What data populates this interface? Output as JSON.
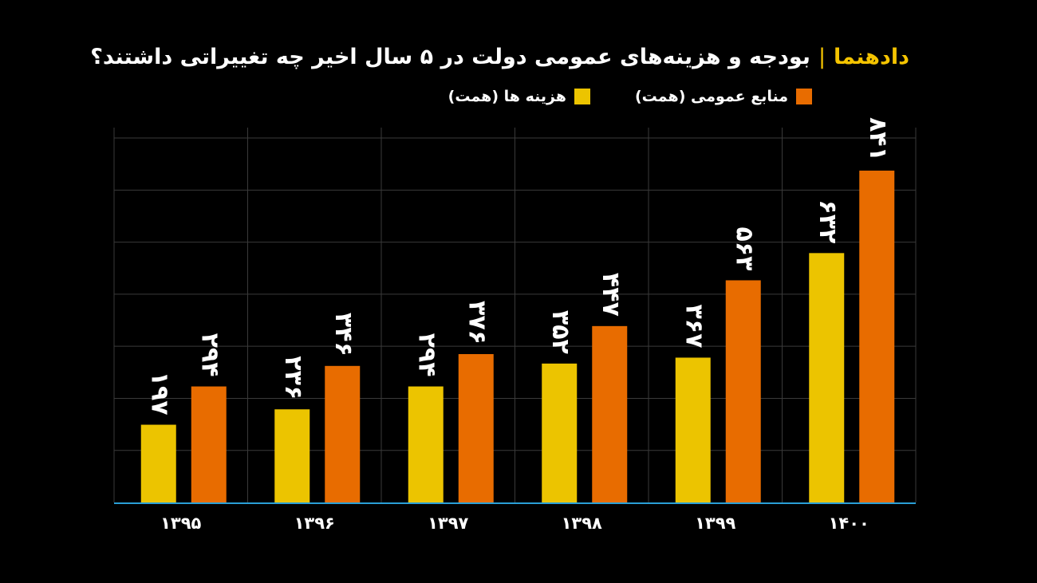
{
  "header": {
    "brand": "دادهنما",
    "separator": "|",
    "title": "بودجه و هزینه‌های عمومی دولت در ۵ سال اخیر  چه تغییراتی داشتند؟"
  },
  "colors": {
    "background": "#000000",
    "cost": "#ecc400",
    "revenue": "#e86c00",
    "grid": "#3a3a3a",
    "baseline": "#2a9fd6",
    "brand": "#f5c400"
  },
  "chart_data": {
    "type": "bar",
    "categories": [
      "۱۳۹۵",
      "۱۳۹۶",
      "۱۳۹۷",
      "۱۳۹۸",
      "۱۳۹۹",
      "۱۴۰۰"
    ],
    "series": [
      {
        "name": "هزینه ها (همت)",
        "values": [
          197,
          236,
          294,
          352,
          367,
          632
        ],
        "labels": [
          "۱۹۷",
          "۲۳۶",
          "۲۹۴",
          "۳۵۲",
          "۳۶۷",
          "۶۳۲"
        ]
      },
      {
        "name": "منابع عمومی (همت)",
        "values": [
          294,
          346,
          376,
          447,
          563,
          841
        ],
        "labels": [
          "۲۹۴",
          "۳۴۶",
          "۳۷۶",
          "۴۴۷",
          "۵۶۳",
          "۸۴۱"
        ]
      }
    ],
    "ylim": [
      0,
      950
    ],
    "grid": true,
    "legend": "top-right"
  }
}
